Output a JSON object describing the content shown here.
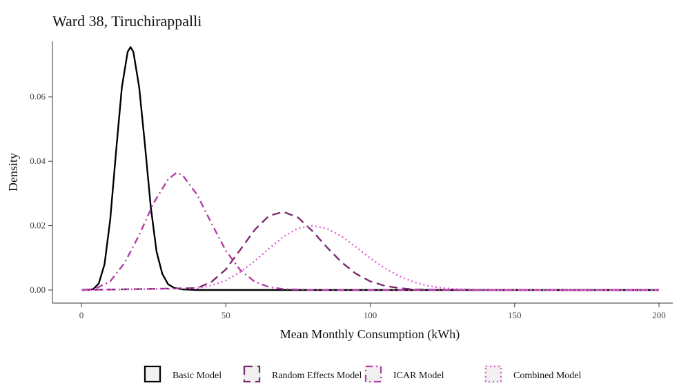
{
  "chart_data": {
    "type": "line",
    "title": "Ward 38, Tiruchirappalli",
    "xlabel": "Mean Monthly Consumption (kWh)",
    "ylabel": "Density",
    "xlim": [
      0,
      200
    ],
    "ylim": [
      0,
      0.076
    ],
    "xticks": [
      0,
      50,
      100,
      150,
      200
    ],
    "xtick_labels": [
      "0",
      "50",
      "100",
      "150",
      "200"
    ],
    "yticks": [
      0.0,
      0.02,
      0.04,
      0.06
    ],
    "ytick_labels": [
      "0.00",
      "0.02",
      "0.04",
      "0.06"
    ],
    "grid": false,
    "legend_position": "bottom",
    "series": [
      {
        "name": "Basic Model",
        "color": "#000000",
        "dash": "solid",
        "x": [
          0,
          4,
          6,
          8,
          10,
          12,
          14,
          16,
          17,
          18,
          20,
          22,
          24,
          26,
          28,
          30,
          32,
          35,
          40,
          50,
          100,
          200
        ],
        "y": [
          0.0,
          0.0002,
          0.002,
          0.008,
          0.022,
          0.043,
          0.063,
          0.074,
          0.0755,
          0.074,
          0.063,
          0.045,
          0.026,
          0.012,
          0.005,
          0.0018,
          0.0007,
          0.0002,
          0.0,
          0.0,
          0.0,
          0.0
        ]
      },
      {
        "name": "Random Effects Model",
        "color": "#7a2a70",
        "dash": "longdash",
        "x": [
          0,
          40,
          45,
          50,
          55,
          60,
          65,
          70,
          75,
          80,
          85,
          90,
          95,
          100,
          105,
          110,
          115,
          120,
          130,
          140,
          200
        ],
        "y": [
          0.0,
          0.0006,
          0.0025,
          0.0064,
          0.0125,
          0.0187,
          0.0231,
          0.0243,
          0.0225,
          0.0183,
          0.0133,
          0.0087,
          0.0051,
          0.0027,
          0.0013,
          0.0006,
          0.0002,
          0.0001,
          0.0,
          0.0,
          0.0
        ]
      },
      {
        "name": "ICAR Model",
        "color": "#b43ca8",
        "dash": "dashdot",
        "x": [
          0,
          5,
          10,
          15,
          20,
          25,
          30,
          33,
          35,
          40,
          45,
          50,
          55,
          60,
          65,
          70,
          80,
          100,
          200
        ],
        "y": [
          0.0,
          0.0005,
          0.0027,
          0.0085,
          0.0171,
          0.027,
          0.0344,
          0.0365,
          0.0357,
          0.0297,
          0.0208,
          0.0122,
          0.0062,
          0.0026,
          0.0009,
          0.0003,
          0.0,
          0.0,
          0.0
        ]
      },
      {
        "name": "Combined Model",
        "color": "#e05ad4",
        "dash": "dotted",
        "x": [
          0,
          40,
          45,
          50,
          55,
          60,
          65,
          70,
          75,
          80,
          85,
          90,
          95,
          100,
          105,
          110,
          115,
          120,
          125,
          130,
          140,
          150,
          160,
          200
        ],
        "y": [
          0.0,
          0.0005,
          0.0014,
          0.003,
          0.0056,
          0.009,
          0.0129,
          0.0166,
          0.0192,
          0.02,
          0.0191,
          0.0167,
          0.0134,
          0.0099,
          0.0068,
          0.0043,
          0.0025,
          0.0013,
          0.0006,
          0.0003,
          0.0001,
          0.0,
          0.0,
          0.0
        ]
      }
    ]
  }
}
